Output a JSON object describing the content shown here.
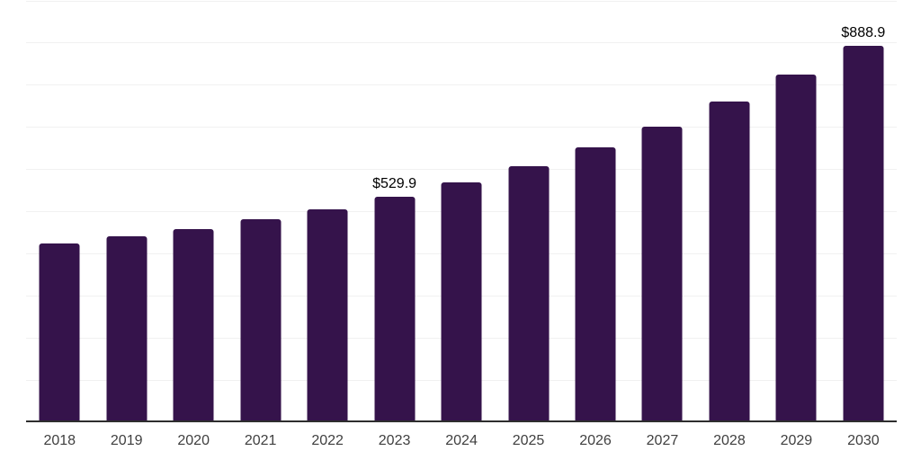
{
  "chart_data": {
    "type": "bar",
    "title": "",
    "xlabel": "",
    "ylabel": "",
    "categories": [
      "2018",
      "2019",
      "2020",
      "2021",
      "2022",
      "2023",
      "2024",
      "2025",
      "2026",
      "2027",
      "2028",
      "2029",
      "2030"
    ],
    "values": [
      420.0,
      437.0,
      454.0,
      476.7,
      500.1,
      529.9,
      563.8,
      602.7,
      646.6,
      697.0,
      757.1,
      820.1,
      888.9
    ],
    "data_labels": {
      "2023": "$529.9",
      "2030": "$888.9"
    },
    "ylim": [
      0,
      1000
    ],
    "grid_step": 100,
    "grid_on": true,
    "legend_position": "none",
    "colors": {
      "bar": "#35134B",
      "gridline": "#f1f1f1",
      "axis_line": "#2e2e2e",
      "tick_label": "#3f3f3f",
      "value_label": "#000000",
      "background": "#ffffff"
    }
  }
}
